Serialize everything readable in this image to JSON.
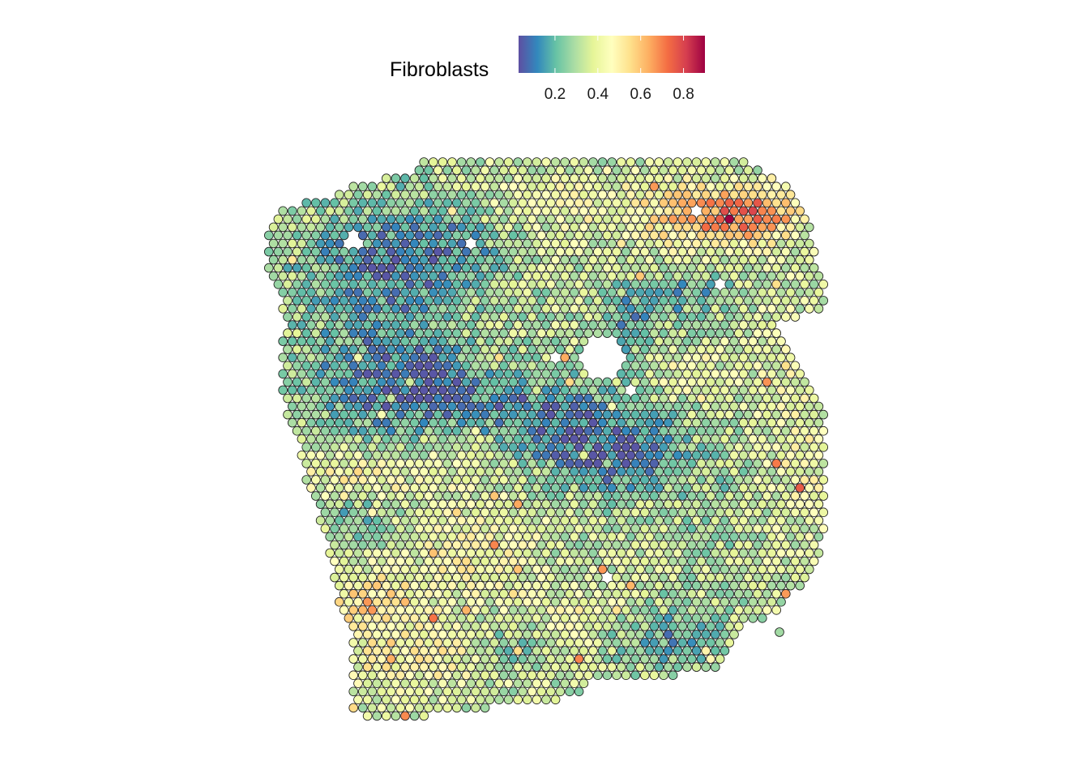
{
  "chart_data": {
    "type": "scatter",
    "title": "",
    "xlabel": "",
    "ylabel": "",
    "legend": {
      "title": "Fibroblasts",
      "placement": "top",
      "ticks": [
        {
          "value": 0.2,
          "label": "0.2"
        },
        {
          "value": 0.4,
          "label": "0.4"
        },
        {
          "value": 0.6,
          "label": "0.6"
        },
        {
          "value": 0.8,
          "label": "0.8"
        }
      ],
      "range": [
        0.03,
        0.9
      ],
      "palette": [
        "#5E4FA2",
        "#3288BD",
        "#66C2A5",
        "#ABDDA4",
        "#E6F598",
        "#FFFFBF",
        "#FEE08B",
        "#FDAE61",
        "#F46D43",
        "#D53E4F",
        "#9E0142"
      ]
    },
    "grid": false,
    "axes_visible": false,
    "point_outline": "#1a1a1a",
    "spots_description_note": ""
  }
}
